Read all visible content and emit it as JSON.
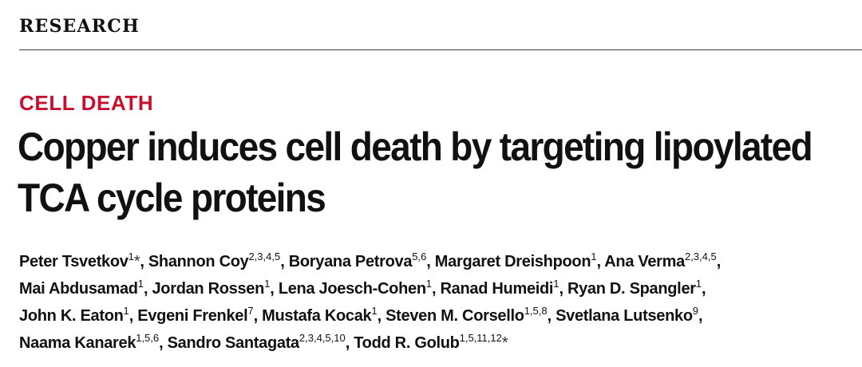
{
  "section": "RESEARCH",
  "kicker": "CELL DEATH",
  "title": {
    "line1": "Copper induces cell death by targeting lipoylated",
    "line2": "TCA cycle proteins"
  },
  "colors": {
    "kicker": "#c8102e",
    "text": "#111111",
    "rule": "#3a3a3a"
  },
  "authors": [
    {
      "name": "Peter Tsvetkov",
      "aff": "1",
      "corresponding": true
    },
    {
      "name": "Shannon Coy",
      "aff": "2,3,4,5"
    },
    {
      "name": "Boryana Petrova",
      "aff": "5,6"
    },
    {
      "name": "Margaret Dreishpoon",
      "aff": "1"
    },
    {
      "name": "Ana Verma",
      "aff": "2,3,4,5"
    },
    {
      "name": "Mai Abdusamad",
      "aff": "1"
    },
    {
      "name": "Jordan Rossen",
      "aff": "1"
    },
    {
      "name": "Lena Joesch-Cohen",
      "aff": "1"
    },
    {
      "name": "Ranad Humeidi",
      "aff": "1"
    },
    {
      "name": "Ryan D. Spangler",
      "aff": "1"
    },
    {
      "name": "John K. Eaton",
      "aff": "1"
    },
    {
      "name": "Evgeni Frenkel",
      "aff": "7"
    },
    {
      "name": "Mustafa Kocak",
      "aff": "1"
    },
    {
      "name": "Steven M. Corsello",
      "aff": "1,5,8"
    },
    {
      "name": "Svetlana Lutsenko",
      "aff": "9"
    },
    {
      "name": "Naama Kanarek",
      "aff": "1,5,6"
    },
    {
      "name": "Sandro Santagata",
      "aff": "2,3,4,5,10"
    },
    {
      "name": "Todd R. Golub",
      "aff": "1,5,11,12",
      "corresponding": true
    }
  ],
  "corresponding_mark": "*"
}
